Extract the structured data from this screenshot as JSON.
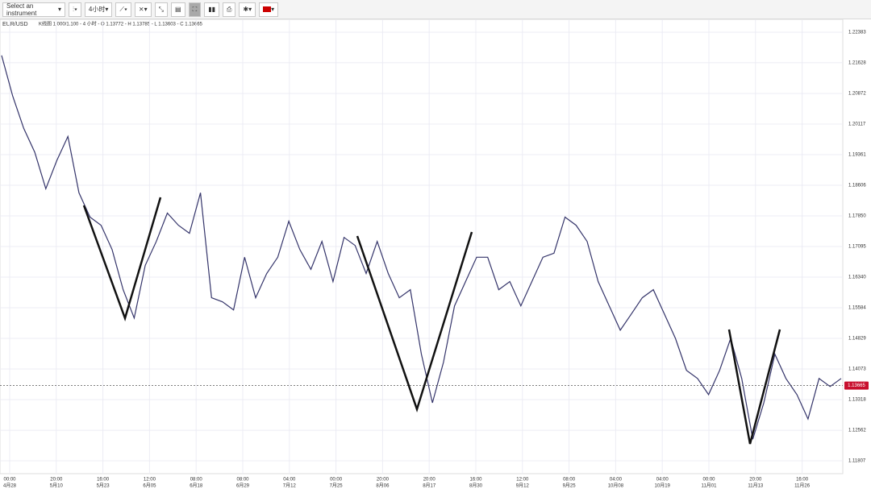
{
  "toolbar": {
    "instrument": "Select an instrument",
    "interval": "4小时"
  },
  "chart": {
    "symbol": "EUR/USD",
    "info": "K线图 1.000/1.100 - 4 小时 - O 1.13772 - H 1.13785 - L 1.13603 - C 1.13665",
    "ylim": [
      1.1149,
      1.227
    ],
    "yticks": [
      1.22383,
      1.21628,
      1.20872,
      1.20117,
      1.19361,
      1.18606,
      {
        "value": 1.1785,
        "label": "1.17850"
      },
      1.17095,
      {
        "value": 1.1634,
        "label": "1.16340"
      },
      1.15584,
      1.14829,
      1.14073,
      1.13318,
      1.12562,
      1.11807
    ],
    "last_price": 1.13665,
    "x_times": [
      "00:00",
      "20:00",
      "16:00",
      "12:00",
      "08:00",
      "08:00",
      "04:00",
      "00:00",
      "20:00",
      "20:00",
      "16:00",
      "12:00",
      "08:00",
      "04:00",
      "04:00",
      "00:00",
      "20:00",
      "16:00"
    ],
    "x_dates": [
      "4月28",
      "5月10",
      "5月23",
      "6月05",
      "6月18",
      "6月29",
      "7月12",
      "7月25",
      "8月06",
      "8月17",
      "8月30",
      "9月12",
      "9月25",
      "10月08",
      "10月19",
      "11月01",
      "11月13",
      "11月26"
    ],
    "price": [
      1.2181,
      1.2081,
      1.2001,
      1.1942,
      1.1852,
      1.1922,
      1.1981,
      1.1842,
      1.1782,
      1.1762,
      1.1702,
      1.1603,
      1.1533,
      1.1663,
      1.1722,
      1.1792,
      1.1762,
      1.1742,
      1.1842,
      1.1583,
      1.1573,
      1.1553,
      1.1683,
      1.1583,
      1.1643,
      1.1683,
      1.1772,
      1.1702,
      1.1653,
      1.1722,
      1.1623,
      1.1732,
      1.1712,
      1.1643,
      1.1722,
      1.1643,
      1.1583,
      1.1603,
      1.1444,
      1.1324,
      1.1424,
      1.1563,
      1.1623,
      1.1683,
      1.1683,
      1.1603,
      1.1623,
      1.1563,
      1.1623,
      1.1683,
      1.1693,
      1.1782,
      1.1762,
      1.1722,
      1.1623,
      1.1563,
      1.1503,
      1.1543,
      1.1583,
      1.1603,
      1.1543,
      1.1483,
      1.1404,
      1.1384,
      1.1344,
      1.1404,
      1.1483,
      1.1384,
      1.1234,
      1.1324,
      1.1444,
      1.1384,
      1.1344,
      1.1284,
      1.1384,
      1.1364,
      1.1384
    ]
  }
}
